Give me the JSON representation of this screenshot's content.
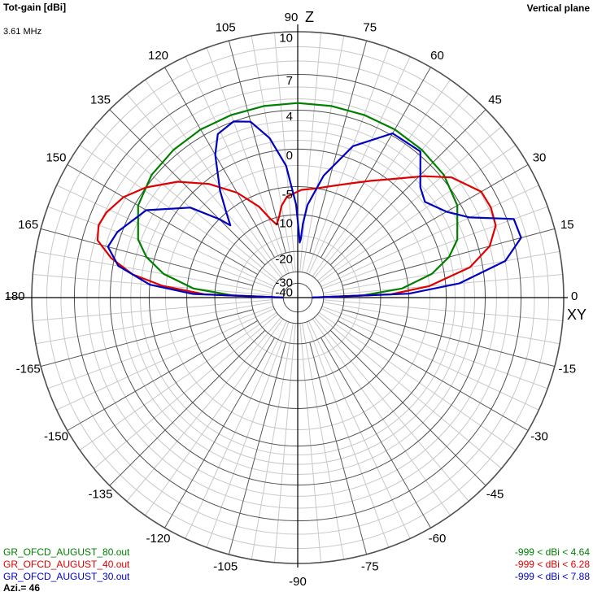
{
  "header": {
    "quantity": "Tot-gain [dBi]",
    "frequency": "3.61 MHz",
    "plane": "Vertical plane"
  },
  "chart_data": {
    "type": "polar",
    "radial_scale": "arrl-log",
    "radial_ticks": [
      10,
      7,
      4,
      0,
      -5,
      -10,
      -20,
      -30,
      -40
    ],
    "radial_range": [
      -40,
      10
    ],
    "angle_ticks": [
      90,
      105,
      120,
      135,
      150,
      165,
      180,
      -165,
      -150,
      -135,
      -120,
      -105,
      -90,
      -75,
      -60,
      -45,
      -30,
      -15,
      0,
      15,
      30,
      45,
      60,
      75
    ],
    "axis_labels": {
      "z": "Z",
      "xy": "XY"
    },
    "grid": true,
    "legend": "bottom",
    "series": [
      {
        "name": "GR_OFCD_AUGUST_80.out",
        "range_label": "-999 < dBi < 4.64",
        "color": "#008000",
        "points": [
          [
            0,
            -40
          ],
          [
            2,
            -14
          ],
          [
            5,
            -6
          ],
          [
            10,
            -1.5
          ],
          [
            15,
            0.9
          ],
          [
            20,
            2.3
          ],
          [
            30,
            3.7
          ],
          [
            40,
            4.3
          ],
          [
            50,
            4.5
          ],
          [
            60,
            4.6
          ],
          [
            70,
            4.62
          ],
          [
            80,
            4.64
          ],
          [
            90,
            4.64
          ],
          [
            100,
            4.64
          ],
          [
            110,
            4.62
          ],
          [
            120,
            4.6
          ],
          [
            130,
            4.5
          ],
          [
            140,
            4.3
          ],
          [
            150,
            3.7
          ],
          [
            160,
            2.3
          ],
          [
            165,
            0.9
          ],
          [
            170,
            -1.5
          ],
          [
            175,
            -6
          ],
          [
            178,
            -14
          ],
          [
            180,
            -40
          ]
        ]
      },
      {
        "name": "GR_OFCD_AUGUST_40.out",
        "range_label": "-999 < dBi < 6.28",
        "color": "#e00000",
        "points": [
          [
            0,
            -40
          ],
          [
            2,
            -8
          ],
          [
            5,
            -2
          ],
          [
            10,
            2.8
          ],
          [
            15,
            5
          ],
          [
            20,
            6
          ],
          [
            25,
            6.2
          ],
          [
            30,
            6.1
          ],
          [
            38,
            4.7
          ],
          [
            44,
            2.8
          ],
          [
            52,
            0.2
          ],
          [
            58,
            -1.3
          ],
          [
            64,
            -2.6
          ],
          [
            72,
            -4
          ],
          [
            80,
            -5
          ],
          [
            88,
            -5.5
          ],
          [
            96,
            -6.5
          ],
          [
            100,
            -8
          ],
          [
            103,
            -10
          ],
          [
            106,
            -11.5
          ],
          [
            109,
            -10
          ],
          [
            113,
            -7
          ],
          [
            120,
            -3.5
          ],
          [
            128,
            -0.5
          ],
          [
            136,
            2
          ],
          [
            144,
            4
          ],
          [
            150,
            5.2
          ],
          [
            156,
            5.9
          ],
          [
            160,
            6.1
          ],
          [
            164,
            5.8
          ],
          [
            168,
            4.3
          ],
          [
            172,
            2
          ],
          [
            175,
            -1.5
          ],
          [
            178,
            -8
          ],
          [
            180,
            -40
          ]
        ]
      },
      {
        "name": "GR_OFCD_AUGUST_30.out",
        "range_label": "-999 < dBi < 7.88",
        "color": "#0000c0",
        "points": [
          [
            0,
            -40
          ],
          [
            2,
            -5
          ],
          [
            5,
            1.5
          ],
          [
            10,
            6
          ],
          [
            15,
            7.6
          ],
          [
            20,
            7.5
          ],
          [
            25,
            4.2
          ],
          [
            30,
            2.5
          ],
          [
            37,
            1.2
          ],
          [
            42,
            1.8
          ],
          [
            50,
            4.3
          ],
          [
            60,
            4.2
          ],
          [
            70,
            1.4
          ],
          [
            78,
            -3
          ],
          [
            84,
            -8
          ],
          [
            86,
            -12
          ],
          [
            87,
            -16
          ],
          [
            88,
            -17
          ],
          [
            89,
            -14
          ],
          [
            91,
            -8
          ],
          [
            95,
            -2
          ],
          [
            100,
            1.5
          ],
          [
            105,
            3.5
          ],
          [
            110,
            4
          ],
          [
            116,
            3.5
          ],
          [
            120,
            1.8
          ],
          [
            126,
            -2
          ],
          [
            130,
            -5
          ],
          [
            133,
            -7
          ],
          [
            135,
            -5
          ],
          [
            140,
            -1
          ],
          [
            150,
            2.8
          ],
          [
            160,
            4.4
          ],
          [
            165,
            4.8
          ],
          [
            170,
            3.5
          ],
          [
            175,
            0
          ],
          [
            178,
            -6
          ],
          [
            180,
            -40
          ]
        ]
      }
    ],
    "azimuth_label": "Azi.= 46"
  }
}
